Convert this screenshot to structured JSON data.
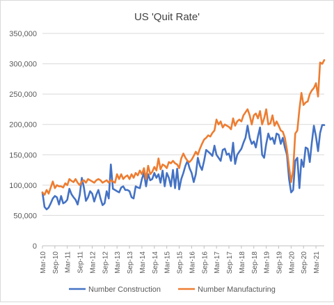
{
  "chart_data": {
    "type": "line",
    "title": "US 'Quit Rate'",
    "xlabel": "",
    "ylabel": "",
    "ylim": [
      0,
      350000
    ],
    "yticks": [
      "0",
      "50,000",
      "100,000",
      "150,000",
      "200,000",
      "250,000",
      "300,000",
      "350,000"
    ],
    "xticks": [
      "Mar-10",
      "Sep-10",
      "Mar-11",
      "Sep-11",
      "Mar-12",
      "Sep-12",
      "Mar-13",
      "Sep-13",
      "Mar-14",
      "Sep-14",
      "Mar-15",
      "Sep-15",
      "Mar-16",
      "Sep-16",
      "Mar-17",
      "Sep-17",
      "Mar-18",
      "Sep-18",
      "Mar-19",
      "Sep-19",
      "Mar-20",
      "Sep-20",
      "Mar-21"
    ],
    "x_start": "Mar-10",
    "x_end": "Aug-21",
    "grid": true,
    "legend_position": "bottom",
    "series": [
      {
        "name": "Number Construction",
        "color": "#4472C4",
        "values": [
          88000,
          64000,
          60000,
          63000,
          70000,
          78000,
          82000,
          80000,
          68000,
          82000,
          70000,
          72000,
          76000,
          94000,
          85000,
          80000,
          76000,
          68000,
          84000,
          112000,
          96000,
          74000,
          80000,
          90000,
          86000,
          73000,
          84000,
          92000,
          78000,
          67000,
          70000,
          90000,
          78000,
          134000,
          94000,
          92000,
          90000,
          88000,
          96000,
          98000,
          92000,
          92000,
          90000,
          80000,
          78000,
          98000,
          96000,
          95000,
          110000,
          120000,
          98000,
          118000,
          108000,
          110000,
          120000,
          112000,
          118000,
          104000,
          124000,
          98000,
          120000,
          112000,
          98000,
          125000,
          95000,
          127000,
          93000,
          110000,
          120000,
          132000,
          140000,
          128000,
          120000,
          105000,
          118000,
          145000,
          132000,
          125000,
          140000,
          158000,
          155000,
          152000,
          148000,
          165000,
          150000,
          145000,
          140000,
          158000,
          160000,
          150000,
          152000,
          140000,
          170000,
          135000,
          150000,
          155000,
          160000,
          170000,
          178000,
          198000,
          178000,
          168000,
          172000,
          162000,
          180000,
          195000,
          150000,
          145000,
          168000,
          185000,
          175000,
          178000,
          168000,
          185000,
          183000,
          168000,
          178000,
          162000,
          150000,
          110000,
          88000,
          92000,
          140000,
          145000,
          95000,
          142000,
          130000,
          162000,
          160000,
          138000,
          170000,
          198000,
          180000,
          156000,
          186000,
          199000,
          199000
        ]
      },
      {
        "name": "Number Manufacturing",
        "color": "#ED7D31",
        "values": [
          88000,
          84000,
          92000,
          86000,
          96000,
          106000,
          95000,
          100000,
          98000,
          98000,
          96000,
          103000,
          100000,
          110000,
          107000,
          105000,
          110000,
          104000,
          100000,
          106000,
          108000,
          104000,
          110000,
          108000,
          106000,
          104000,
          108000,
          110000,
          108000,
          104000,
          106000,
          108000,
          104000,
          108000,
          106000,
          104000,
          118000,
          110000,
          118000,
          110000,
          114000,
          116000,
          110000,
          118000,
          112000,
          120000,
          116000,
          124000,
          118000,
          128000,
          110000,
          132000,
          118000,
          122000,
          130000,
          124000,
          144000,
          126000,
          134000,
          132000,
          128000,
          138000,
          136000,
          140000,
          136000,
          134000,
          128000,
          144000,
          152000,
          145000,
          140000,
          138000,
          142000,
          148000,
          155000,
          150000,
          160000,
          168000,
          175000,
          178000,
          182000,
          180000,
          186000,
          190000,
          208000,
          200000,
          205000,
          195000,
          200000,
          198000,
          196000,
          192000,
          210000,
          198000,
          205000,
          208000,
          205000,
          215000,
          220000,
          225000,
          215000,
          200000,
          215000,
          218000,
          210000,
          222000,
          200000,
          210000,
          225000,
          200000,
          202000,
          215000,
          198000,
          205000,
          198000,
          190000,
          188000,
          178000,
          158000,
          130000,
          105000,
          125000,
          185000,
          190000,
          225000,
          252000,
          232000,
          236000,
          238000,
          250000,
          256000,
          260000,
          268000,
          246000,
          302000,
          300000,
          306000
        ]
      }
    ]
  }
}
